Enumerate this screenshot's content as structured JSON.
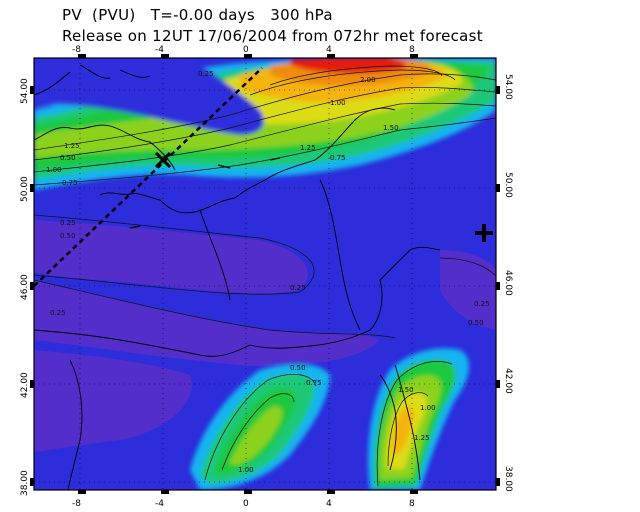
{
  "header": {
    "title_line1": "PV  (PVU)   T=-0.00 days   300 hPa",
    "title_line2": "Release on 12UT 17/06/2004 from 072hr met forecast"
  },
  "axes": {
    "lon_ticks": [
      "-8",
      "-4",
      "0",
      "4",
      "8"
    ],
    "lat_ticks_left": [
      "54.00",
      "50.00",
      "46.00",
      "42.00",
      "38.00"
    ],
    "lat_ticks_right": [
      "54.00",
      "50.00",
      "46.00",
      "42.00",
      "38.00"
    ]
  },
  "contour_labels": [
    "0.25",
    "0.50",
    "0.75",
    "1.00",
    "1.25",
    "1.50",
    "2.00",
    "0.25",
    "0.50",
    "0.75",
    "1.00",
    "1.25",
    "0.25",
    "1.00",
    "1.50",
    "0.50",
    "0.25",
    "0.25",
    "0.50",
    "1.00",
    "1.25",
    "0.75"
  ],
  "markers": {
    "cross_x_name": "trajectory-marker-x",
    "release_plus_name": "release-point-plus"
  },
  "colors": {
    "background": "#2d2ddc",
    "low": "#5a2fc8",
    "cyan": "#19b4f0",
    "green": "#1ec83c",
    "yellow": "#dcdc14",
    "orange": "#f08c0a",
    "red": "#e61e0a"
  }
}
